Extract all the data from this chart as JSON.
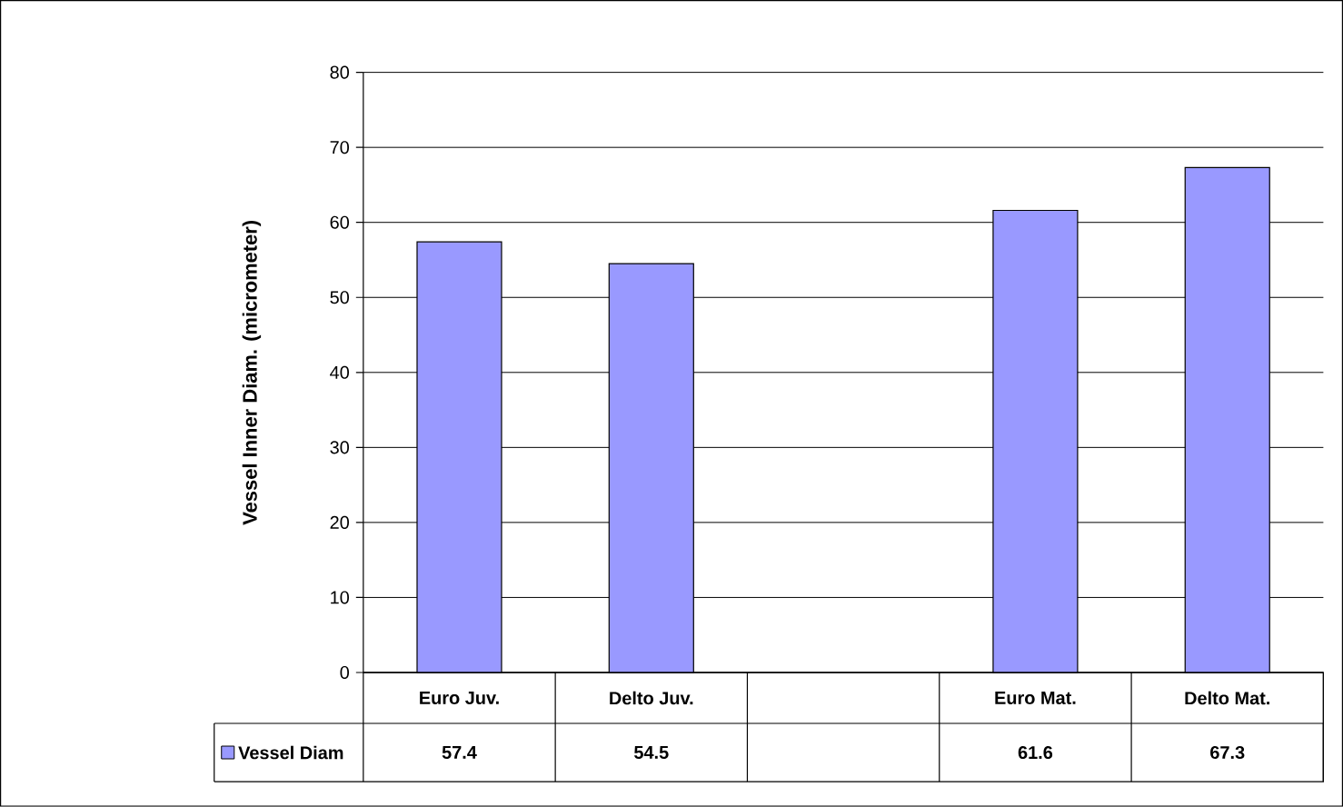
{
  "chart_data": {
    "type": "bar",
    "ylabel": "Vessel Inner Diam. (micrometer)",
    "categories": [
      "Euro Juv.",
      "Delto Juv.",
      null,
      "Euro Mat.",
      "Delto Mat."
    ],
    "series": [
      {
        "name": "Vessel Diam",
        "color": "#9999ff",
        "values": [
          57.4,
          54.5,
          null,
          61.6,
          67.3
        ]
      }
    ],
    "ylim": [
      0,
      80
    ],
    "yticks": [
      0,
      10,
      20,
      30,
      40,
      50,
      60,
      70,
      80
    ],
    "grid": "y",
    "legend": "bottom",
    "data_labels": true
  }
}
